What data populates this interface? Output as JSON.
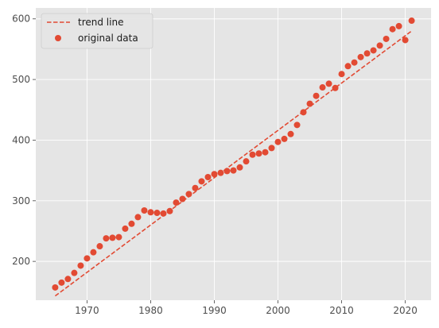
{
  "chart_data": {
    "type": "scatter",
    "title": "",
    "xlabel": "",
    "ylabel": "",
    "xlim": [
      1961.95,
      2024.05
    ],
    "ylim": [
      136,
      618
    ],
    "x_ticks": [
      1970,
      1980,
      1990,
      2000,
      2010,
      2020
    ],
    "y_ticks": [
      200,
      300,
      400,
      500,
      600
    ],
    "grid": true,
    "legend_position": "top-left",
    "colors": {
      "accent": "#E24A33",
      "panel": "#E5E5E5",
      "grid": "#FFFFFF"
    },
    "series": [
      {
        "name": "trend line",
        "kind": "line",
        "style": "dashed",
        "x": [
          1965,
          2021
        ],
        "y": [
          143,
          580
        ]
      },
      {
        "name": "original data",
        "kind": "scatter",
        "x": [
          1965,
          1966,
          1967,
          1968,
          1969,
          1970,
          1971,
          1972,
          1973,
          1974,
          1975,
          1976,
          1977,
          1978,
          1979,
          1980,
          1981,
          1982,
          1983,
          1984,
          1985,
          1986,
          1987,
          1988,
          1989,
          1990,
          1991,
          1992,
          1993,
          1994,
          1995,
          1996,
          1997,
          1998,
          1999,
          2000,
          2001,
          2002,
          2003,
          2004,
          2005,
          2006,
          2007,
          2008,
          2009,
          2010,
          2011,
          2012,
          2013,
          2014,
          2015,
          2016,
          2017,
          2018,
          2019,
          2020,
          2021
        ],
        "y": [
          157,
          165,
          171,
          181,
          193,
          205,
          215,
          225,
          238,
          239,
          240,
          254,
          262,
          273,
          284,
          281,
          280,
          279,
          283,
          297,
          303,
          311,
          321,
          332,
          339,
          344,
          346,
          349,
          350,
          355,
          365,
          376,
          378,
          380,
          387,
          397,
          402,
          410,
          425,
          446,
          460,
          473,
          487,
          493,
          486,
          509,
          522,
          528,
          537,
          543,
          548,
          556,
          567,
          583,
          588,
          565,
          597
        ]
      }
    ]
  }
}
